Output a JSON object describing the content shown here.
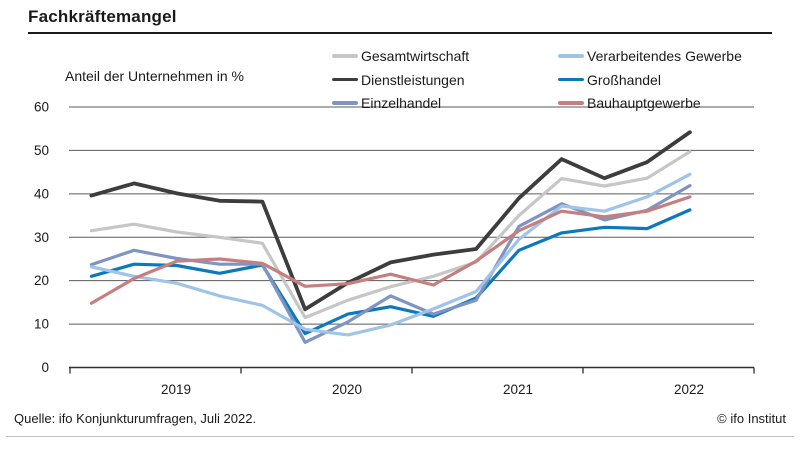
{
  "title": "Fachkräftemangel",
  "axis_label": "Anteil der Unternehmen in %",
  "footer": {
    "source": "Quelle: ifo Konjunkturumfragen, Juli 2022.",
    "copyright": "© ifo Institut"
  },
  "chart_data": {
    "type": "line",
    "title": "Fachkräftemangel",
    "ylabel": "Anteil der Unternehmen in %",
    "ylim": [
      0,
      60
    ],
    "yticks": [
      0,
      10,
      20,
      30,
      40,
      50,
      60
    ],
    "grid": "horizontal",
    "legend_position": "top-right",
    "x_labels_years": [
      "2019",
      "2020",
      "2021",
      "2022"
    ],
    "x_quarters": [
      "Q1 2019",
      "Q2 2019",
      "Q3 2019",
      "Q4 2019",
      "Q1 2020",
      "Q2 2020",
      "Q3 2020",
      "Q4 2020",
      "Q1 2021",
      "Q2 2021",
      "Q3 2021",
      "Q4 2021",
      "Q1 2022",
      "Q2 2022",
      "Q3 2022"
    ],
    "series": [
      {
        "name": "Gesamtwirtschaft",
        "color": "#c6c6c6",
        "values": [
          31.5,
          33.0,
          31.2,
          30.0,
          28.6,
          11.5,
          15.5,
          18.6,
          21.0,
          24.3,
          35.0,
          43.5,
          41.8,
          43.6,
          49.7
        ]
      },
      {
        "name": "Dienstleistungen",
        "color": "#3d3d3d",
        "values": [
          39.6,
          42.4,
          40.1,
          38.4,
          38.2,
          13.4,
          19.5,
          24.2,
          26.0,
          27.3,
          39.0,
          48.0,
          43.6,
          47.3,
          54.2
        ]
      },
      {
        "name": "Großhandel",
        "color": "#0d79bd",
        "values": [
          21.0,
          23.8,
          23.5,
          21.7,
          23.6,
          7.8,
          12.3,
          14.0,
          11.8,
          16.0,
          27.0,
          31.0,
          32.3,
          32.0,
          36.3
        ]
      },
      {
        "name": "Einzelhandel",
        "color": "#7e95c3",
        "values": [
          23.7,
          27.0,
          25.1,
          23.8,
          23.8,
          5.8,
          10.5,
          16.5,
          12.3,
          15.5,
          32.5,
          37.7,
          34.0,
          36.2,
          41.9
        ]
      },
      {
        "name": "Verarbeitendes Gewerbe",
        "color": "#9fc4e7",
        "values": [
          23.2,
          21.0,
          19.4,
          16.5,
          14.3,
          8.8,
          7.5,
          9.8,
          13.5,
          17.5,
          29.5,
          37.2,
          36.0,
          39.3,
          44.5
        ]
      },
      {
        "name": "Bauhauptgewerbe",
        "color": "#c57f80",
        "values": [
          14.8,
          20.5,
          24.5,
          25.0,
          24.0,
          18.7,
          19.3,
          21.5,
          19.0,
          24.5,
          31.5,
          36.0,
          34.7,
          36.0,
          39.3
        ]
      }
    ],
    "legend_columns": [
      [
        0,
        1,
        3
      ],
      [
        4,
        2,
        5
      ]
    ]
  }
}
